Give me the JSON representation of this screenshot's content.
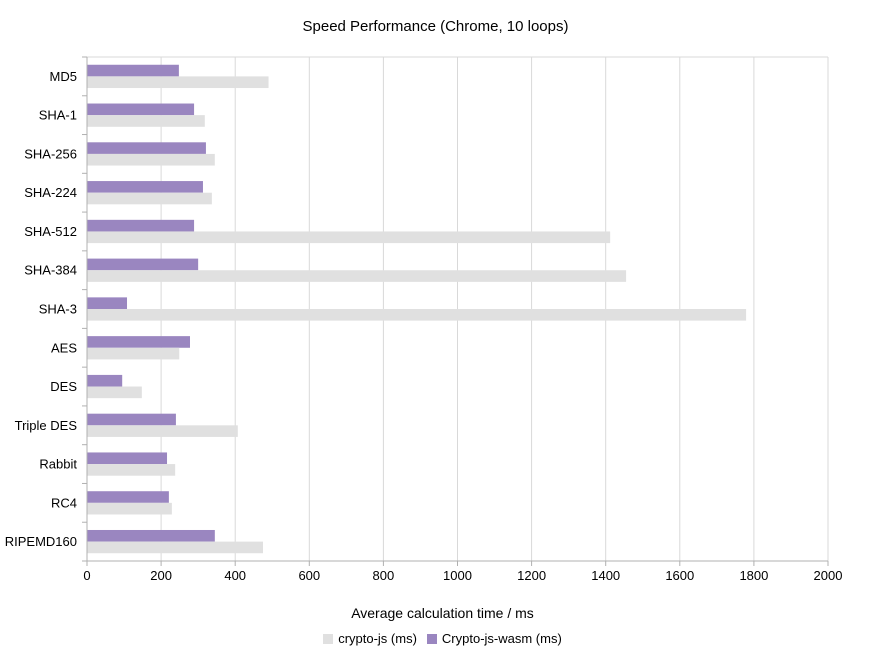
{
  "title": "Speed Performance (Chrome, 10 loops)",
  "chart_data": {
    "type": "bar",
    "orientation": "horizontal",
    "title": "Speed Performance (Chrome, 10 loops)",
    "xlabel": "Average calculation time / ms",
    "ylabel": "",
    "categories": [
      "MD5",
      "SHA-1",
      "SHA-256",
      "SHA-224",
      "SHA-512",
      "SHA-384",
      "SHA-3",
      "AES",
      "DES",
      "Triple DES",
      "Rabbit",
      "RC4",
      "RIPEMD160"
    ],
    "series": [
      {
        "name": "crypto-js (ms)",
        "color": "#e0e0e0",
        "values": [
          490,
          318,
          345,
          337,
          1412,
          1455,
          1779,
          249,
          148,
          407,
          238,
          229,
          475
        ]
      },
      {
        "name": "Crypto-js-wasm (ms)",
        "color": "#9a86c0",
        "values": [
          248,
          289,
          321,
          313,
          289,
          300,
          108,
          278,
          95,
          240,
          216,
          221,
          345
        ]
      }
    ],
    "band_top_series_index": 1,
    "xlim": [
      0,
      2000
    ],
    "xticks": [
      0,
      200,
      400,
      600,
      800,
      1000,
      1200,
      1400,
      1600,
      1800,
      2000
    ],
    "grid": true,
    "legend_position": "bottom",
    "gridline_color": "#d9d9d9",
    "axis_color": "#b0b0b0",
    "text_color": "#000000",
    "background_color": "#ffffff"
  }
}
